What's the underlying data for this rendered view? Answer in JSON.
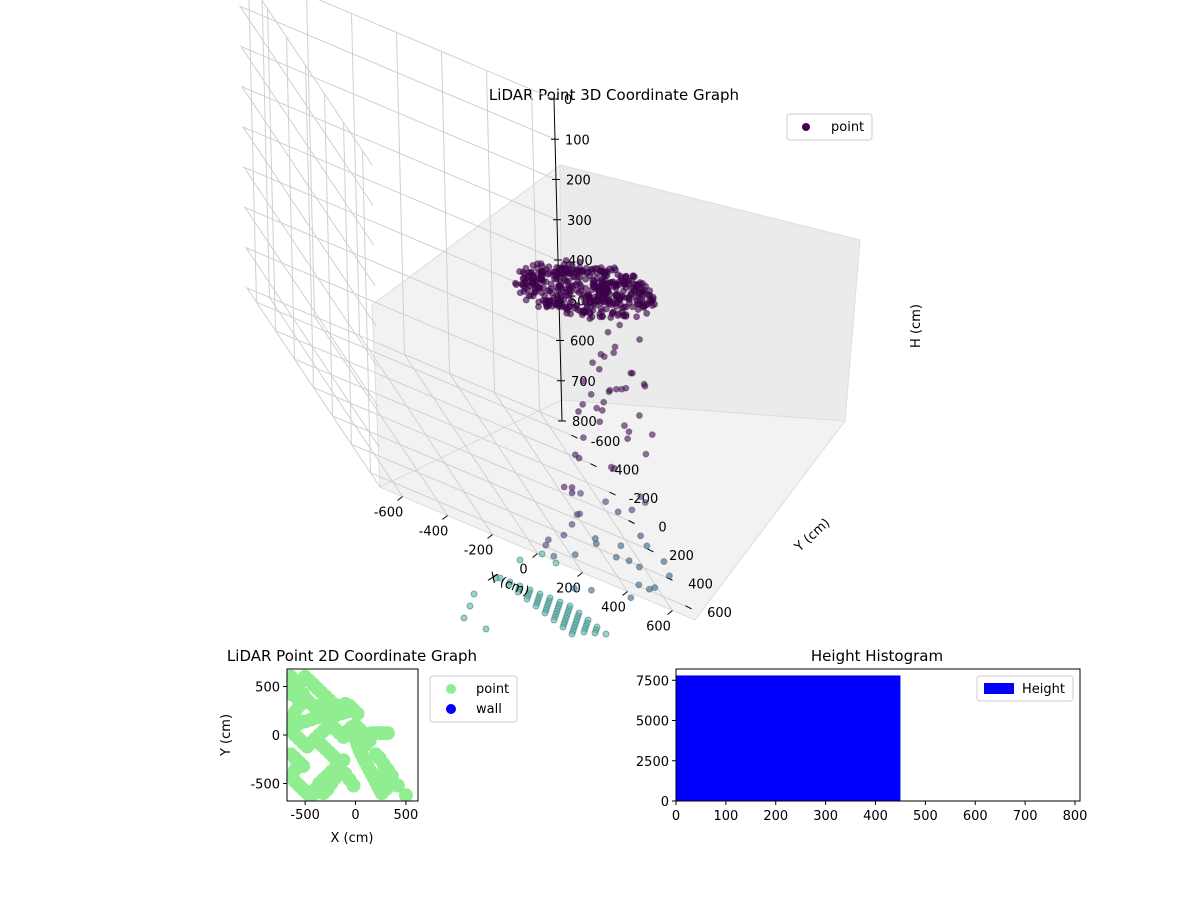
{
  "chart_data": [
    {
      "type": "scatter3d",
      "title": "LiDAR Point 3D Coordinate Graph",
      "xlabel": "X (cm)",
      "ylabel": "Y (cm)",
      "zlabel": "H (cm)",
      "xlim": [
        -700,
        700
      ],
      "ylim": [
        -700,
        700
      ],
      "zlim": [
        0,
        800
      ],
      "z_inverted": true,
      "xticks": [
        -600,
        -400,
        -200,
        0,
        200,
        400,
        600
      ],
      "yticks": [
        -600,
        -400,
        -200,
        0,
        200,
        400,
        600
      ],
      "zticks": [
        0,
        100,
        200,
        300,
        400,
        500,
        600,
        700,
        800
      ],
      "grid": true,
      "legend": {
        "placement": "top-right",
        "entries": [
          {
            "label": "point",
            "color": "#440154"
          }
        ]
      },
      "colormap": "viridis",
      "series": [
        {
          "name": "point"
        }
      ]
    },
    {
      "type": "scatter",
      "title": "LiDAR Point 2D Coordinate Graph",
      "xlabel": "X (cm)",
      "ylabel": "Y (cm)",
      "xlim": [
        -680,
        620
      ],
      "ylim": [
        -680,
        680
      ],
      "xticks": [
        -500,
        0,
        500
      ],
      "yticks": [
        -500,
        0,
        500
      ],
      "legend": {
        "placement": "outside-right",
        "entries": [
          {
            "label": "point",
            "color": "#90ee90"
          },
          {
            "label": "wall",
            "color": "#0000ff"
          }
        ]
      },
      "series": [
        {
          "name": "point",
          "color": "#90ee90",
          "points": [
            [
              -640,
              600
            ],
            [
              -600,
              560
            ],
            [
              -560,
              520
            ],
            [
              -620,
              480
            ],
            [
              -640,
              420
            ],
            [
              -580,
              380
            ],
            [
              -520,
              420
            ],
            [
              -480,
              360
            ],
            [
              -440,
              320
            ],
            [
              -400,
              280
            ],
            [
              -360,
              300
            ],
            [
              -300,
              320
            ],
            [
              -260,
              300
            ],
            [
              -220,
              280
            ],
            [
              -160,
              300
            ],
            [
              -100,
              320
            ],
            [
              -60,
              300
            ],
            [
              -20,
              260
            ],
            [
              20,
              220
            ],
            [
              -80,
              240
            ],
            [
              -140,
              220
            ],
            [
              -200,
              200
            ],
            [
              -260,
              180
            ],
            [
              -320,
              200
            ],
            [
              -380,
              180
            ],
            [
              -440,
              160
            ],
            [
              -500,
              140
            ],
            [
              -560,
              120
            ],
            [
              -620,
              100
            ],
            [
              -640,
              40
            ],
            [
              -600,
              0
            ],
            [
              -560,
              -40
            ],
            [
              -520,
              -80
            ],
            [
              -480,
              -120
            ],
            [
              -440,
              -80
            ],
            [
              -400,
              -40
            ],
            [
              -360,
              0
            ],
            [
              -320,
              40
            ],
            [
              -280,
              80
            ],
            [
              -240,
              100
            ],
            [
              -200,
              60
            ],
            [
              -160,
              20
            ],
            [
              -120,
              -20
            ],
            [
              -80,
              40
            ],
            [
              -40,
              80
            ],
            [
              0,
              100
            ],
            [
              40,
              60
            ],
            [
              80,
              20
            ],
            [
              120,
              0
            ],
            [
              160,
              20
            ],
            [
              200,
              20
            ],
            [
              240,
              20
            ],
            [
              280,
              20
            ],
            [
              320,
              20
            ],
            [
              0,
              -40
            ],
            [
              20,
              -100
            ],
            [
              40,
              -160
            ],
            [
              60,
              -200
            ],
            [
              80,
              -240
            ],
            [
              100,
              -280
            ],
            [
              120,
              -320
            ],
            [
              140,
              -360
            ],
            [
              160,
              -400
            ],
            [
              180,
              -440
            ],
            [
              200,
              -480
            ],
            [
              220,
              -520
            ],
            [
              240,
              -560
            ],
            [
              260,
              -600
            ],
            [
              300,
              -560
            ],
            [
              340,
              -520
            ],
            [
              380,
              -500
            ],
            [
              420,
              -520
            ],
            [
              500,
              -620
            ],
            [
              -640,
              -200
            ],
            [
              -600,
              -240
            ],
            [
              -560,
              -280
            ],
            [
              -520,
              -320
            ],
            [
              -600,
              -360
            ],
            [
              -640,
              -420
            ],
            [
              -600,
              -480
            ],
            [
              -560,
              -520
            ],
            [
              -520,
              -560
            ],
            [
              -480,
              -600
            ],
            [
              -440,
              -640
            ],
            [
              -400,
              -560
            ],
            [
              -360,
              -500
            ],
            [
              -320,
              -460
            ],
            [
              -280,
              -420
            ],
            [
              -240,
              -380
            ],
            [
              -200,
              -340
            ],
            [
              -160,
              -300
            ],
            [
              -120,
              -260
            ],
            [
              -200,
              -440
            ],
            [
              -240,
              -500
            ],
            [
              -280,
              -560
            ],
            [
              -320,
              -600
            ],
            [
              -100,
              -400
            ],
            [
              -60,
              -460
            ],
            [
              -20,
              -520
            ],
            [
              -500,
              600
            ],
            [
              -460,
              560
            ],
            [
              -420,
              520
            ],
            [
              -380,
              480
            ],
            [
              -340,
              440
            ],
            [
              -300,
              400
            ],
            [
              -260,
              360
            ],
            [
              -220,
              320
            ],
            [
              -180,
              280
            ],
            [
              -560,
              300
            ],
            [
              -600,
              240
            ],
            [
              -640,
              180
            ],
            [
              -340,
              -100
            ],
            [
              -300,
              -140
            ],
            [
              -260,
              -180
            ],
            [
              -220,
              -220
            ],
            [
              100,
              -100
            ],
            [
              140,
              -60
            ],
            [
              60,
              -60
            ],
            [
              200,
              -200
            ],
            [
              240,
              -240
            ],
            [
              280,
              -300
            ],
            [
              320,
              -360
            ],
            [
              360,
              -420
            ],
            [
              300,
              -440
            ],
            [
              260,
              -400
            ]
          ]
        },
        {
          "name": "wall",
          "color": "#0000ff",
          "points": []
        }
      ]
    },
    {
      "type": "bar",
      "title": "Height Histogram",
      "xlim": [
        0,
        810
      ],
      "ylim": [
        0,
        8200
      ],
      "xticks": [
        0,
        100,
        200,
        300,
        400,
        500,
        600,
        700,
        800
      ],
      "yticks": [
        0,
        2500,
        5000,
        7500
      ],
      "legend": {
        "placement": "top-right",
        "entries": [
          {
            "label": "Height",
            "color": "#0000ff"
          }
        ]
      },
      "series": [
        {
          "name": "Height",
          "color": "#0000ff",
          "bins": [
            {
              "x0": 0,
              "x1": 450,
              "value": 7800
            }
          ]
        }
      ]
    }
  ]
}
